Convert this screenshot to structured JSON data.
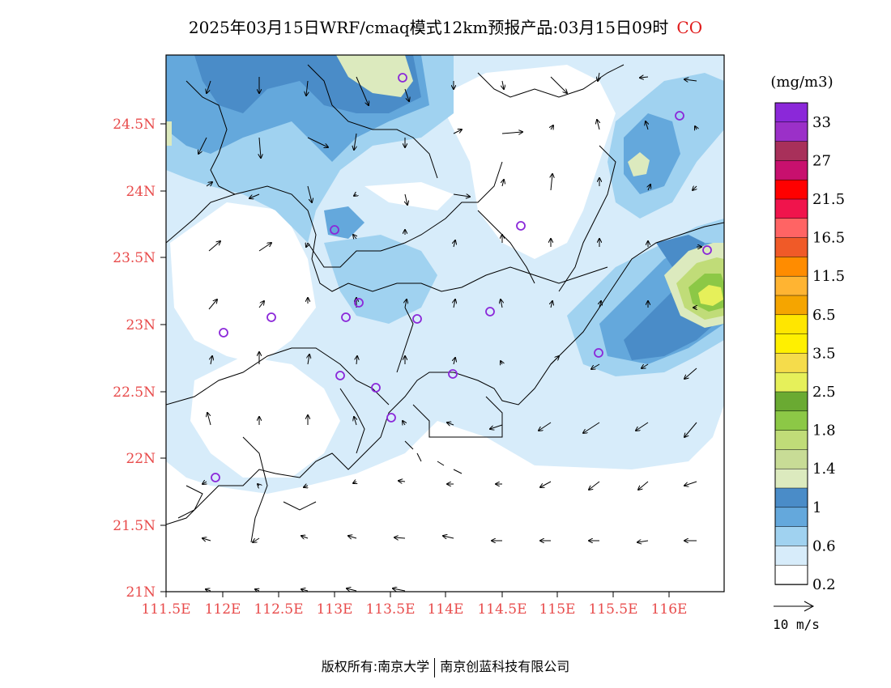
{
  "title": {
    "main": "2025年03月15日WRF/cmaq模式12km预报产品:03月15日09时",
    "variable": "CO"
  },
  "map": {
    "lat_ticks": [
      "24.5N",
      "24N",
      "23.5N",
      "23N",
      "22.5N",
      "22N",
      "21.5N",
      "21N"
    ],
    "lon_ticks": [
      "111.5E",
      "112E",
      "112.5E",
      "113E",
      "113.5E",
      "114E",
      "114.5E",
      "115E",
      "115.5E",
      "116E"
    ],
    "station_marker": "circle-icon",
    "coastline_color": "#000000"
  },
  "colorbar": {
    "unit": "(mg/m3)",
    "labels": [
      "33",
      "27",
      "21.5",
      "16.5",
      "11.5",
      "6.5",
      "3.5",
      "2.5",
      "1.8",
      "1.4",
      "1",
      "0.6",
      "0.2"
    ],
    "colors": [
      "#8b28d9",
      "#9b30c8",
      "#a8305a",
      "#c8106e",
      "#ff0000",
      "#f0144c",
      "#ff6464",
      "#f05a28",
      "#ff8c00",
      "#ffb432",
      "#f5a500",
      "#ffe600",
      "#fff000",
      "#f5dc4b",
      "#e6f05a",
      "#6aaa32",
      "#8cc846",
      "#c0dc78",
      "#c8dc96",
      "#dceabe",
      "#4a8cc8",
      "#64a8dc",
      "#a0d2f0",
      "#d7ecfa",
      "#ffffff"
    ]
  },
  "wind_reference": {
    "label": "10 m/s",
    "arrow_icon": "arrow-right-icon"
  },
  "footer": {
    "copyright": "版权所有:南京大学",
    "company": "南京创蓝科技有限公司"
  }
}
